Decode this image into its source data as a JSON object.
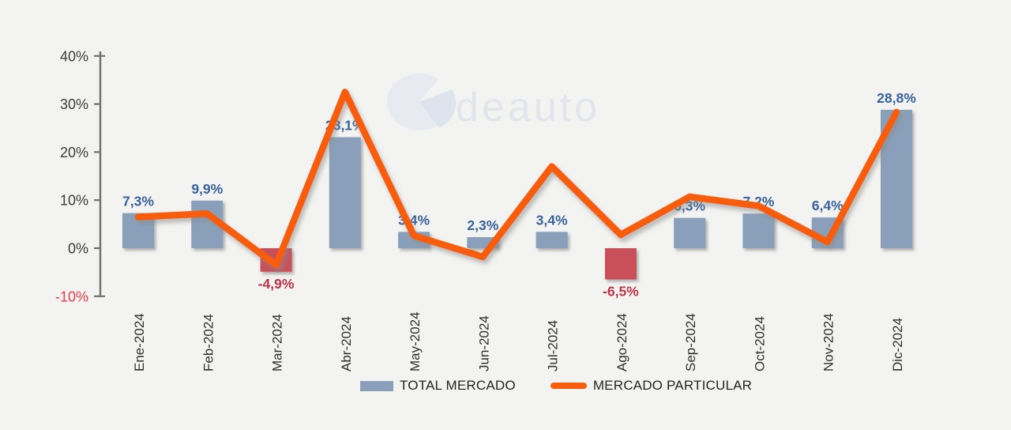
{
  "chart_data": {
    "type": "combo_bar_line",
    "title": "",
    "categories": [
      "Ene-2024",
      "Feb-2024",
      "Mar-2024",
      "Abr-2024",
      "May-2024",
      "Jun-2024",
      "Jul-2024",
      "Ago-2024",
      "Sep-2024",
      "Oct-2024",
      "Nov-2024",
      "Dic-2024"
    ],
    "series": [
      {
        "name": "TOTAL MERCADO",
        "type": "bar",
        "values": [
          7.3,
          9.9,
          -4.9,
          23.1,
          3.4,
          2.3,
          3.4,
          -6.5,
          6.3,
          7.2,
          6.4,
          28.8
        ],
        "data_labels": [
          "7,3%",
          "9,9%",
          "-4,9%",
          "23,1%",
          "3,4%",
          "2,3%",
          "3,4%",
          "-6,5%",
          "6,3%",
          "7,2%",
          "6,4%",
          "28,8%"
        ]
      },
      {
        "name": "MERCADO PARTICULAR",
        "type": "line",
        "values": [
          6.5,
          7.2,
          -3.5,
          32.5,
          2.6,
          -1.8,
          17.0,
          2.8,
          10.7,
          8.8,
          1.3,
          28.3
        ],
        "estimated": true
      }
    ],
    "ylim": [
      -10,
      40
    ],
    "yticks": [
      {
        "value": 40,
        "label": "40%"
      },
      {
        "value": 30,
        "label": "30%"
      },
      {
        "value": 20,
        "label": "20%"
      },
      {
        "value": 10,
        "label": "10%"
      },
      {
        "value": 0,
        "label": "0%"
      },
      {
        "value": -10,
        "label": "-10%",
        "negative_style": true
      }
    ],
    "grid": false,
    "legend_position": "bottom-center"
  },
  "legend": {
    "items": [
      {
        "label": "TOTAL MERCADO",
        "swatch": "bar"
      },
      {
        "label": "MERCADO PARTICULAR",
        "swatch": "line"
      }
    ]
  },
  "watermark": {
    "text": "deauto",
    "icon": "ideauto-circle-logo"
  },
  "colors": {
    "background": "#f3f3f1",
    "bar_positive": "#8aa0ba",
    "bar_negative": "#c94f58",
    "line": "#f85c0d",
    "label_positive": "#39639c",
    "label_negative": "#bd3347",
    "ytick_text": "#3d3d3d",
    "ytick_negative_text": "#e73b4b",
    "axis": "#707070",
    "xtick_text": "#2f2f2f",
    "legend_text": "#242424",
    "watermark_text": "#e2e6ec",
    "watermark_circle": "#e7ebf1"
  }
}
